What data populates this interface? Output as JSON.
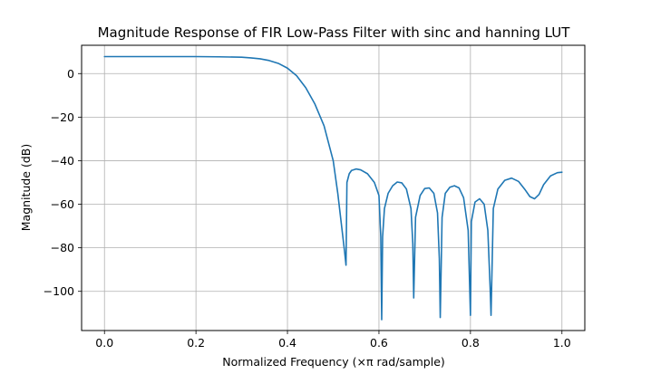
{
  "chart_data": {
    "type": "line",
    "title": "Magnitude Response of FIR Low-Pass Filter with sinc and hanning LUT",
    "xlabel": "Normalized Frequency (×π rad/sample)",
    "ylabel": "Magnitude (dB)",
    "xlim": [
      -0.05,
      1.05
    ],
    "ylim": [
      -118,
      13
    ],
    "xticks": [
      0.0,
      0.2,
      0.4,
      0.6,
      0.8,
      1.0
    ],
    "xtick_labels": [
      "0.0",
      "0.2",
      "0.4",
      "0.6",
      "0.8",
      "1.0"
    ],
    "yticks": [
      0,
      -20,
      -40,
      -60,
      -80,
      -100
    ],
    "ytick_labels": [
      "0",
      "−20",
      "−40",
      "−60",
      "−80",
      "−100"
    ],
    "grid": true,
    "series": [
      {
        "color": "#1f77b4",
        "x": [
          0.0,
          0.1,
          0.2,
          0.25,
          0.3,
          0.32,
          0.34,
          0.36,
          0.38,
          0.4,
          0.42,
          0.44,
          0.46,
          0.48,
          0.5,
          0.51,
          0.52,
          0.525,
          0.528,
          0.53,
          0.535,
          0.54,
          0.55,
          0.56,
          0.575,
          0.59,
          0.6,
          0.604,
          0.606,
          0.608,
          0.612,
          0.62,
          0.63,
          0.64,
          0.65,
          0.66,
          0.67,
          0.674,
          0.676,
          0.68,
          0.69,
          0.7,
          0.71,
          0.72,
          0.728,
          0.732,
          0.734,
          0.738,
          0.745,
          0.755,
          0.765,
          0.775,
          0.785,
          0.795,
          0.8,
          0.802,
          0.81,
          0.82,
          0.83,
          0.838,
          0.843,
          0.845,
          0.85,
          0.86,
          0.875,
          0.89,
          0.905,
          0.92,
          0.93,
          0.94,
          0.95,
          0.96,
          0.975,
          0.99,
          1.0
        ],
        "y": [
          7.8,
          7.8,
          7.8,
          7.7,
          7.5,
          7.2,
          6.8,
          6.0,
          4.7,
          2.5,
          -1.0,
          -6.5,
          -14.0,
          -24.0,
          -40.0,
          -55.0,
          -73.0,
          -82.0,
          -88.0,
          -50.0,
          -46.0,
          -44.5,
          -43.8,
          -44.2,
          -46.0,
          -50.0,
          -56.0,
          -75.0,
          -113.0,
          -75.0,
          -62.0,
          -55.0,
          -51.5,
          -49.8,
          -50.2,
          -53.0,
          -62.0,
          -78.0,
          -103.0,
          -66.0,
          -56.0,
          -52.8,
          -52.5,
          -55.0,
          -64.0,
          -85.0,
          -112.0,
          -66.0,
          -55.0,
          -52.2,
          -51.5,
          -52.5,
          -57.0,
          -72.0,
          -111.0,
          -68.0,
          -59.0,
          -57.5,
          -60.0,
          -72.0,
          -98.0,
          -111.0,
          -62.0,
          -53.0,
          -49.0,
          -48.0,
          -49.5,
          -53.5,
          -56.5,
          -57.5,
          -55.5,
          -51.0,
          -47.0,
          -45.5,
          -45.3
        ]
      }
    ]
  }
}
